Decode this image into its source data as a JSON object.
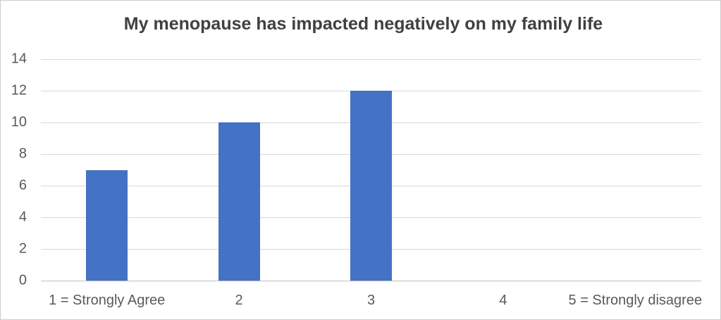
{
  "chart_data": {
    "type": "bar",
    "title": "My menopause has impacted negatively on my family life",
    "categories": [
      "1 = Strongly Agree",
      "2",
      "3",
      "4",
      "5 = Strongly disagree"
    ],
    "values": [
      7,
      10,
      12,
      0,
      0
    ],
    "xlabel": "",
    "ylabel": "",
    "ylim": [
      0,
      14
    ],
    "yticks": [
      0,
      2,
      4,
      6,
      8,
      10,
      12,
      14
    ],
    "grid": true,
    "legend": false,
    "colors": {
      "bar": "#4472C4",
      "gridline": "#D9D9D9",
      "axis_line": "#BFBFBF",
      "title_text": "#404040",
      "tick_text": "#595959",
      "border": "#CDCDCD"
    }
  }
}
